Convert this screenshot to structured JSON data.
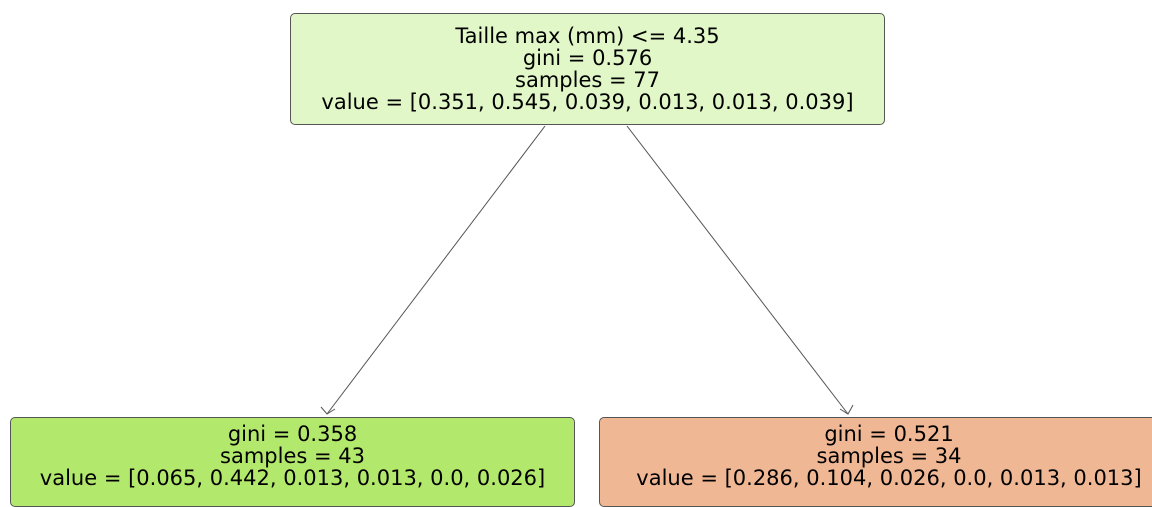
{
  "tree": {
    "root": {
      "split": "Taille max (mm) <= 4.35",
      "gini": "gini = 0.576",
      "samples": "samples = 77",
      "value": "value = [0.351, 0.545, 0.039, 0.013, 0.013, 0.039]",
      "color": "#e1f7c7"
    },
    "left": {
      "gini": "gini = 0.358",
      "samples": "samples = 43",
      "value": "value = [0.065, 0.442, 0.013, 0.013, 0.0, 0.026]",
      "color": "#b2e96c"
    },
    "right": {
      "gini": "gini = 0.521",
      "samples": "samples = 34",
      "value": "value = [0.286, 0.104, 0.026, 0.0, 0.013, 0.013]",
      "color": "#f0b794"
    }
  }
}
